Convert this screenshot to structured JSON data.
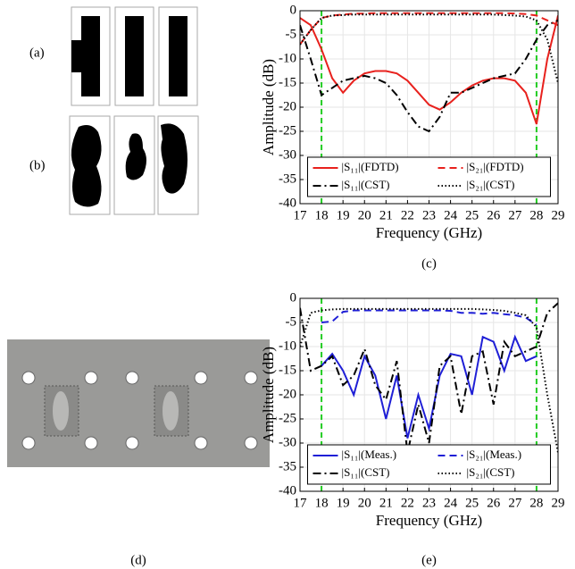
{
  "panel_labels": [
    "(a)",
    "(b)",
    "(d)"
  ],
  "chart_data": [
    {
      "type": "line",
      "caption": "(c)",
      "x_label": "Frequency (GHz)",
      "y_label": "Amplitude (dB)",
      "xlim": [
        17,
        29
      ],
      "xticks": [
        17,
        18,
        19,
        20,
        21,
        22,
        23,
        24,
        25,
        26,
        27,
        28,
        29
      ],
      "ylim": [
        -40,
        0
      ],
      "yticks": [
        -40,
        -35,
        -30,
        -25,
        -20,
        -15,
        -10,
        -5,
        0
      ],
      "grid": true,
      "legend": "lower center",
      "markers": [
        18,
        28
      ],
      "marker_color": "#22cc22",
      "x": [
        17,
        17.5,
        18,
        18.5,
        19,
        19.5,
        20,
        20.5,
        21,
        21.5,
        22,
        22.5,
        23,
        23.5,
        24,
        24.5,
        25,
        25.5,
        26,
        26.5,
        27,
        27.5,
        28,
        28.5,
        29
      ],
      "series": [
        {
          "name": "|S₁₁|(FDTD)",
          "color": "#e8211d",
          "dash": "solid",
          "values": [
            -1.5,
            -3,
            -8,
            -14,
            -17,
            -14.5,
            -13,
            -12.5,
            -12.5,
            -13,
            -14.5,
            -17,
            -19.5,
            -20.5,
            -19,
            -17,
            -15.5,
            -14.5,
            -14,
            -14,
            -14.5,
            -17,
            -23.5,
            -10,
            -1
          ]
        },
        {
          "name": "|S₁₁|(CST)",
          "color": "#000000",
          "dash": "dashdot",
          "values": [
            -3,
            -10,
            -17.5,
            -16,
            -14.5,
            -14,
            -13.5,
            -14,
            -15,
            -17.5,
            -21,
            -24,
            -25,
            -22,
            -17,
            -17,
            -16,
            -15,
            -14,
            -13.5,
            -13,
            -10,
            -6,
            -3,
            -2
          ]
        },
        {
          "name": "|S₂₁|(FDTD)",
          "color": "#e8211d",
          "dash": "dash",
          "values": [
            -7,
            -4,
            -1.5,
            -1,
            -0.8,
            -0.6,
            -0.6,
            -0.5,
            -0.5,
            -0.5,
            -0.5,
            -0.5,
            -0.5,
            -0.5,
            -0.5,
            -0.5,
            -0.5,
            -0.5,
            -0.5,
            -0.5,
            -0.6,
            -0.7,
            -1,
            -2,
            -3
          ]
        },
        {
          "name": "|S₂₁|(CST)",
          "color": "#000000",
          "dash": "dot",
          "values": [
            -7,
            -4,
            -1.5,
            -1,
            -0.9,
            -0.8,
            -0.8,
            -0.8,
            -0.8,
            -0.8,
            -0.8,
            -0.8,
            -0.8,
            -0.8,
            -0.8,
            -0.8,
            -0.8,
            -0.8,
            -0.8,
            -0.9,
            -1,
            -1.2,
            -2,
            -6,
            -15
          ]
        }
      ]
    },
    {
      "type": "line",
      "caption": "(e)",
      "x_label": "Frequency (GHz)",
      "y_label": "Amplitude (dB)",
      "xlim": [
        17,
        29
      ],
      "xticks": [
        17,
        18,
        19,
        20,
        21,
        22,
        23,
        24,
        25,
        26,
        27,
        28,
        29
      ],
      "ylim": [
        -40,
        0
      ],
      "yticks": [
        -40,
        -35,
        -30,
        -25,
        -20,
        -15,
        -10,
        -5,
        0
      ],
      "grid": true,
      "legend": "lower center",
      "markers": [
        18,
        28
      ],
      "marker_color": "#22cc22",
      "x": [
        17,
        17.5,
        18,
        18.5,
        19,
        19.5,
        20,
        20.5,
        21,
        21.5,
        22,
        22.5,
        23,
        23.5,
        24,
        24.5,
        25,
        25.5,
        26,
        26.5,
        27,
        27.5,
        28,
        28.5,
        29
      ],
      "series": [
        {
          "name": "|S₁₁|(Meas.)",
          "color": "#1f1fd6",
          "dash": "solid",
          "values": [
            null,
            null,
            -14,
            -11.5,
            -15,
            -20,
            -12,
            -16,
            -25,
            -16,
            -29,
            -20,
            -27,
            -16,
            -11.5,
            -12,
            -20,
            -8,
            -9,
            -15,
            -8,
            -13,
            -12,
            null,
            null
          ]
        },
        {
          "name": "|S₁₁|(CST)",
          "color": "#000000",
          "dash": "dashdot",
          "values": [
            -2,
            -15,
            -14,
            -12,
            -18,
            -16,
            -10.5,
            -18,
            -21,
            -13,
            -32,
            -22,
            -30,
            -14,
            -12,
            -24,
            -12,
            -11,
            -22,
            -9,
            -12,
            -11,
            -10,
            -3,
            -1
          ]
        },
        {
          "name": "|S₂₁|(Meas.)",
          "color": "#1f1fd6",
          "dash": "dash",
          "values": [
            null,
            null,
            -5,
            -4.8,
            -2.8,
            -2.5,
            -2.5,
            -2.5,
            -2.5,
            -2.5,
            -2.5,
            -2.5,
            -2.5,
            -2.5,
            -2.6,
            -3,
            -3,
            -3.2,
            -3,
            -3.3,
            -3.5,
            -4,
            -5.5,
            null,
            null
          ]
        },
        {
          "name": "|S₂₁|(CST)",
          "color": "#000000",
          "dash": "dot",
          "values": [
            -10,
            -3,
            -2.5,
            -2.3,
            -2.2,
            -2.2,
            -2.2,
            -2.2,
            -2.2,
            -2.2,
            -2.2,
            -2.2,
            -2.2,
            -2.2,
            -2.2,
            -2.2,
            -2.2,
            -2.3,
            -2.4,
            -2.6,
            -3,
            -3.5,
            -6,
            -20,
            -32
          ]
        }
      ]
    }
  ]
}
